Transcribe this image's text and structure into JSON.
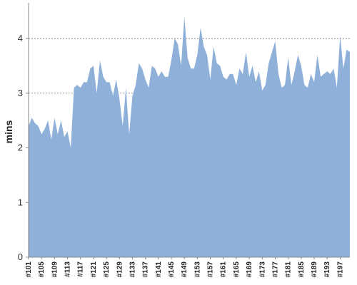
{
  "chart_data": {
    "type": "area",
    "title": "",
    "xlabel": "",
    "ylabel": "mins",
    "ylim": [
      0,
      4.6
    ],
    "y_ticks": [
      0,
      1,
      2,
      3,
      4
    ],
    "y_tick_labels": [
      "0",
      "1",
      "2",
      "3",
      "4"
    ],
    "grid": {
      "horizontal": true,
      "style": "dashed"
    },
    "colors": {
      "fill": "#8eb0d9",
      "axis": "#888888",
      "grid": "#777777"
    },
    "x_tick_labels": [
      "#101",
      "#105",
      "#109",
      "#113",
      "#117",
      "#121",
      "#125",
      "#129",
      "#133",
      "#137",
      "#141",
      "#145",
      "#149",
      "#153",
      "#157",
      "#161",
      "#165",
      "#169",
      "#173",
      "#177",
      "#181",
      "#185",
      "#189",
      "#193",
      "#197"
    ],
    "x_tick_step": 4,
    "x": [
      "#101",
      "#102",
      "#103",
      "#104",
      "#105",
      "#106",
      "#107",
      "#108",
      "#109",
      "#110",
      "#111",
      "#112",
      "#113",
      "#114",
      "#115",
      "#116",
      "#117",
      "#118",
      "#119",
      "#120",
      "#121",
      "#122",
      "#123",
      "#124",
      "#125",
      "#126",
      "#127",
      "#128",
      "#129",
      "#130",
      "#131",
      "#132",
      "#133",
      "#134",
      "#135",
      "#136",
      "#137",
      "#138",
      "#139",
      "#140",
      "#141",
      "#142",
      "#143",
      "#144",
      "#145",
      "#146",
      "#147",
      "#148",
      "#149",
      "#150",
      "#151",
      "#152",
      "#153",
      "#154",
      "#155",
      "#156",
      "#157",
      "#158",
      "#159",
      "#160",
      "#161",
      "#162",
      "#163",
      "#164",
      "#165",
      "#166",
      "#167",
      "#168",
      "#169",
      "#170",
      "#171",
      "#172",
      "#173",
      "#174",
      "#175",
      "#176",
      "#177",
      "#178",
      "#179",
      "#180",
      "#181",
      "#182",
      "#183",
      "#184",
      "#185",
      "#186",
      "#187",
      "#188",
      "#189",
      "#190",
      "#191",
      "#192",
      "#193",
      "#194",
      "#195",
      "#196",
      "#197",
      "#198",
      "#199",
      "#200"
    ],
    "values": [
      2.4,
      2.55,
      2.45,
      2.4,
      2.25,
      2.35,
      2.5,
      2.15,
      2.55,
      2.25,
      2.5,
      2.2,
      2.3,
      2.0,
      3.1,
      3.15,
      3.1,
      3.2,
      3.2,
      3.45,
      3.5,
      3.0,
      3.6,
      3.3,
      3.2,
      3.2,
      2.95,
      3.25,
      2.9,
      2.4,
      3.1,
      2.25,
      2.95,
      3.15,
      3.55,
      3.45,
      3.25,
      3.1,
      3.5,
      3.45,
      3.3,
      3.4,
      3.3,
      3.3,
      3.6,
      4.0,
      3.9,
      3.5,
      4.4,
      3.65,
      3.45,
      3.45,
      3.7,
      4.2,
      3.85,
      3.7,
      3.25,
      3.85,
      3.55,
      3.5,
      3.3,
      3.25,
      3.35,
      3.35,
      3.15,
      3.45,
      3.35,
      3.75,
      3.3,
      3.5,
      3.2,
      3.4,
      3.05,
      3.15,
      3.55,
      3.75,
      3.95,
      3.35,
      3.1,
      3.15,
      3.65,
      3.15,
      3.4,
      3.7,
      3.5,
      3.15,
      3.1,
      3.35,
      3.2,
      3.7,
      3.3,
      3.35,
      3.4,
      3.35,
      3.45,
      3.1,
      4.05,
      3.45,
      3.8,
      3.75
    ]
  }
}
